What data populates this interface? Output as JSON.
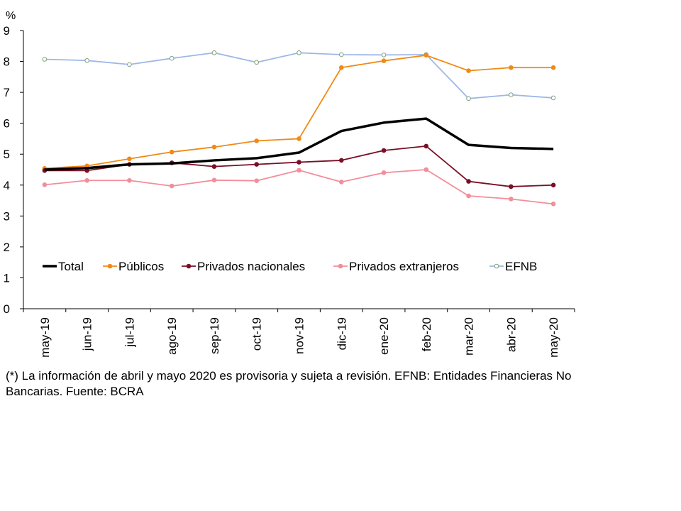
{
  "chart_data": {
    "type": "line",
    "ylabel": "%",
    "ylim": [
      0,
      9
    ],
    "yticks": [
      "0",
      "1",
      "2",
      "3",
      "4",
      "5",
      "6",
      "7",
      "8",
      "9"
    ],
    "categories": [
      "may-19",
      "jun-19",
      "jul-19",
      "ago-19",
      "sep-19",
      "oct-19",
      "nov-19",
      "dic-19",
      "ene-20",
      "feb-20",
      "mar-20",
      "abr-20",
      "may-20"
    ],
    "legend_position": "inside-lower-left",
    "series": [
      {
        "name": "Total",
        "color": "#000000",
        "marker": "none",
        "values": [
          4.5,
          4.55,
          4.67,
          4.7,
          4.8,
          4.87,
          5.05,
          5.75,
          6.02,
          6.15,
          5.3,
          5.2,
          5.17
        ]
      },
      {
        "name": "Públicos",
        "color": "#f08a16",
        "marker": "filled",
        "values": [
          4.54,
          4.62,
          4.85,
          5.07,
          5.23,
          5.43,
          5.5,
          7.8,
          8.02,
          8.2,
          7.7,
          7.8,
          7.8
        ]
      },
      {
        "name": "Privados nacionales",
        "color": "#7a0f26",
        "marker": "filled",
        "values": [
          4.47,
          4.47,
          4.67,
          4.72,
          4.6,
          4.67,
          4.74,
          4.8,
          5.12,
          5.26,
          4.12,
          3.95,
          4.0
        ]
      },
      {
        "name": "Privados extranjeros",
        "color": "#f28e9a",
        "marker": "filled",
        "values": [
          4.01,
          4.15,
          4.15,
          3.97,
          4.16,
          4.14,
          4.48,
          4.1,
          4.4,
          4.5,
          3.65,
          3.55,
          3.39
        ]
      },
      {
        "name": "EFNB",
        "color": "#9db7e8",
        "marker": "hollow",
        "values": [
          8.07,
          8.03,
          7.9,
          8.1,
          8.28,
          7.97,
          8.28,
          8.22,
          8.21,
          8.22,
          6.8,
          6.92,
          6.82
        ]
      }
    ]
  },
  "footnote": "(*) La información de abril y mayo 2020 es provisoria y sujeta a revisión. EFNB: Entidades Financieras No Bancarias. Fuente: BCRA"
}
